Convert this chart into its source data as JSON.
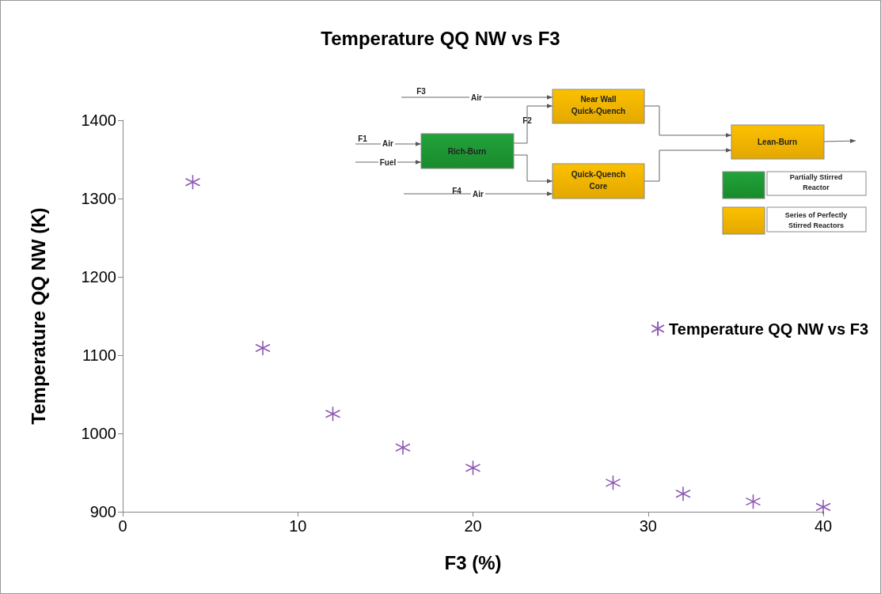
{
  "chart_data": {
    "type": "scatter",
    "title": "Temperature QQ NW vs F3",
    "xlabel": "F3 (%)",
    "ylabel": "Temperature QQ NW (K)",
    "x": [
      4,
      8,
      12,
      16,
      20,
      28,
      32,
      36,
      40
    ],
    "series": [
      {
        "name": "Temperature QQ NW vs F3",
        "color": "#7030a0",
        "values": [
          1321,
          1109,
          1025,
          982,
          956,
          937,
          923,
          913,
          906
        ]
      }
    ],
    "xlim": [
      0,
      40
    ],
    "xticks": [
      0,
      10,
      20,
      30,
      40
    ],
    "ylim": [
      900,
      1400
    ],
    "yticks": [
      900,
      1000,
      1100,
      1200,
      1300,
      1400
    ],
    "grid": false,
    "legend": "right",
    "marker": "cross",
    "annotations": [
      "F3",
      "Air",
      "Near Wall",
      "Quick-Quench",
      "F2",
      "F1",
      "Air",
      "Rich-Burn",
      "Fuel",
      "Quick-Quench",
      "Core",
      "F4",
      "Air",
      "Lean-Burn",
      "Partially Stirred",
      "Reactor",
      "Series of Perfectly",
      "Stirred Reactors"
    ]
  }
}
